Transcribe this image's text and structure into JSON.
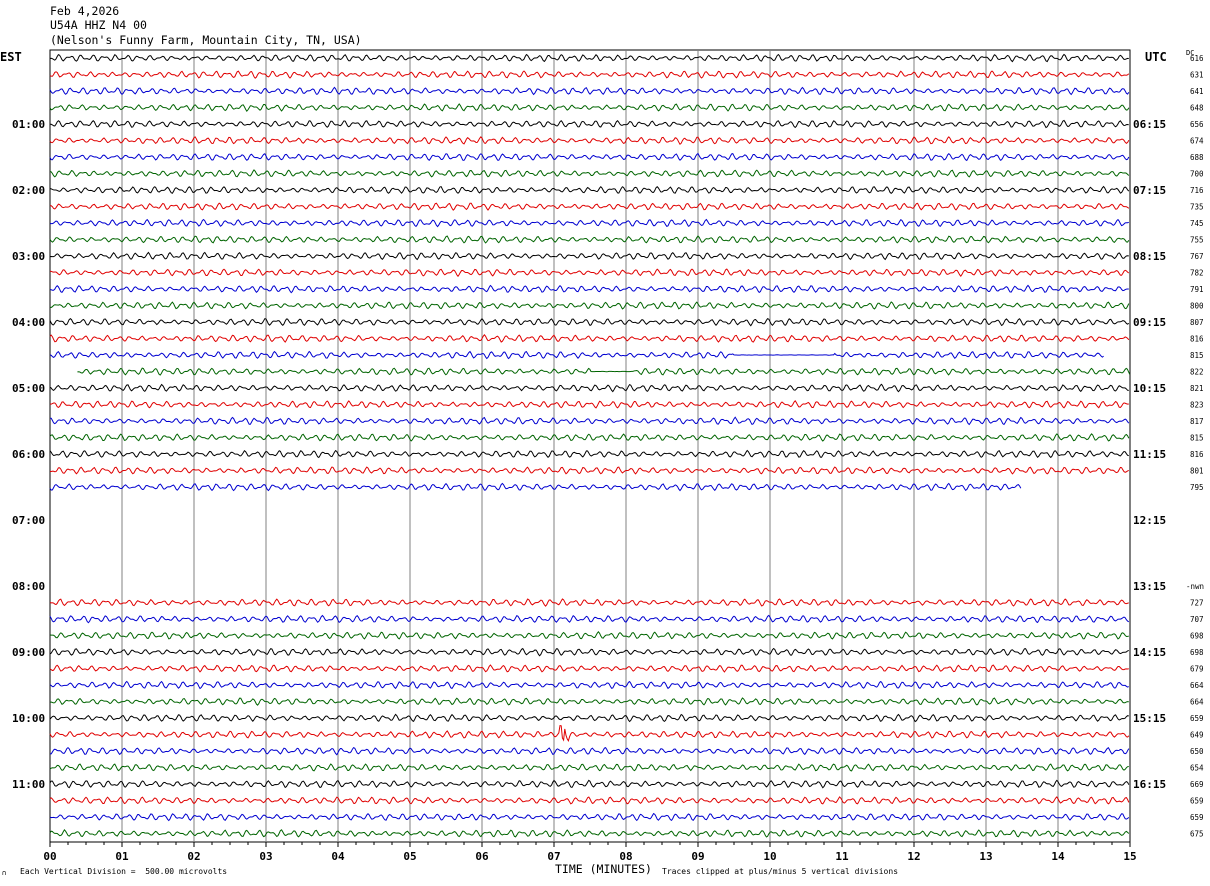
{
  "header": {
    "date": "Feb 4,2026",
    "station": "U54A HHZ N4 00",
    "location": "(Nelson's Funny Farm, Mountain City, TN, USA)"
  },
  "left_tz": "EST",
  "right_tz": "UTC",
  "dc_label": "DC",
  "footer": {
    "vertical_division": "Each Vertical Division =  500.00 microvolts",
    "clip_note": "Traces clipped at plus/minus 5 vertical divisions",
    "x_axis_title": "TIME (MINUTES)",
    "corner_mark": "∩"
  },
  "colors": {
    "black": "#000000",
    "red": "#e00000",
    "blue": "#0000d0",
    "green": "#006400",
    "grid": "#808080"
  },
  "chart_data": {
    "type": "line",
    "title": "U54A HHZ N4 00",
    "xlabel": "TIME (MINUTES)",
    "x_ticks": [
      "00",
      "01",
      "02",
      "03",
      "04",
      "05",
      "06",
      "07",
      "08",
      "09",
      "10",
      "11",
      "12",
      "13",
      "14",
      "15"
    ],
    "xlim": [
      0,
      15
    ],
    "left_hour_labels": [
      "01:00",
      "02:00",
      "03:00",
      "04:00",
      "05:00",
      "06:00",
      "07:00",
      "08:00",
      "09:00",
      "10:00",
      "11:00"
    ],
    "right_hour_labels": [
      "06:15",
      "07:15",
      "08:15",
      "09:15",
      "10:15",
      "11:15",
      "12:15",
      "13:15",
      "14:15",
      "15:15",
      "16:15"
    ],
    "trace_colors": [
      "black",
      "red",
      "blue",
      "green"
    ],
    "traces": [
      {
        "row": 0,
        "dc": "616",
        "start": 0,
        "end": 15
      },
      {
        "row": 1,
        "dc": "631",
        "start": 0,
        "end": 15
      },
      {
        "row": 2,
        "dc": "641",
        "start": 0,
        "end": 15
      },
      {
        "row": 3,
        "dc": "648",
        "start": 0,
        "end": 15
      },
      {
        "row": 4,
        "dc": "656",
        "start": 0,
        "end": 15
      },
      {
        "row": 5,
        "dc": "674",
        "start": 0,
        "end": 15
      },
      {
        "row": 6,
        "dc": "688",
        "start": 0,
        "end": 15
      },
      {
        "row": 7,
        "dc": "700",
        "start": 0,
        "end": 15
      },
      {
        "row": 8,
        "dc": "716",
        "start": 0,
        "end": 15
      },
      {
        "row": 9,
        "dc": "735",
        "start": 0,
        "end": 15
      },
      {
        "row": 10,
        "dc": "745",
        "start": 0,
        "end": 15
      },
      {
        "row": 11,
        "dc": "755",
        "start": 0,
        "end": 15
      },
      {
        "row": 12,
        "dc": "767",
        "start": 0,
        "end": 15
      },
      {
        "row": 13,
        "dc": "782",
        "start": 0,
        "end": 15
      },
      {
        "row": 14,
        "dc": "791",
        "start": 0,
        "end": 15
      },
      {
        "row": 15,
        "dc": "800",
        "start": 0,
        "end": 15
      },
      {
        "row": 16,
        "dc": "807",
        "start": 0,
        "end": 15
      },
      {
        "row": 17,
        "dc": "816",
        "start": 0,
        "end": 15
      },
      {
        "row": 18,
        "dc": "815",
        "start": 0,
        "end": 14.65,
        "flat": [
          9.5,
          10.9
        ]
      },
      {
        "row": 19,
        "dc": "822",
        "start": 0.38,
        "end": 15,
        "flat": [
          7.5,
          8.1
        ]
      },
      {
        "row": 20,
        "dc": "821",
        "start": 0,
        "end": 15
      },
      {
        "row": 21,
        "dc": "823",
        "start": 0,
        "end": 15
      },
      {
        "row": 22,
        "dc": "817",
        "start": 0,
        "end": 15
      },
      {
        "row": 23,
        "dc": "815",
        "start": 0,
        "end": 15
      },
      {
        "row": 24,
        "dc": "816",
        "start": 0,
        "end": 15
      },
      {
        "row": 25,
        "dc": "801",
        "start": 0,
        "end": 15
      },
      {
        "row": 26,
        "dc": "795",
        "start": 0,
        "end": 13.5
      },
      {
        "row": 33,
        "dc": "727",
        "start": 0,
        "end": 15
      },
      {
        "row": 34,
        "dc": "707",
        "start": 0,
        "end": 15
      },
      {
        "row": 35,
        "dc": "698",
        "start": 0,
        "end": 15
      },
      {
        "row": 36,
        "dc": "698",
        "start": 0,
        "end": 15
      },
      {
        "row": 37,
        "dc": "679",
        "start": 0,
        "end": 15
      },
      {
        "row": 38,
        "dc": "664",
        "start": 0,
        "end": 15
      },
      {
        "row": 39,
        "dc": "664",
        "start": 0,
        "end": 15
      },
      {
        "row": 40,
        "dc": "659",
        "start": 0,
        "end": 15
      },
      {
        "row": 41,
        "dc": "649",
        "start": 0,
        "end": 15,
        "spike": 7.15
      },
      {
        "row": 42,
        "dc": "650",
        "start": 0,
        "end": 15
      },
      {
        "row": 43,
        "dc": "654",
        "start": 0,
        "end": 15
      },
      {
        "row": 44,
        "dc": "669",
        "start": 0,
        "end": 15
      },
      {
        "row": 45,
        "dc": "659",
        "start": 0,
        "end": 15
      },
      {
        "row": 46,
        "dc": "659",
        "start": 0,
        "end": 15
      },
      {
        "row": 47,
        "dc": "675",
        "start": 0,
        "end": 15
      }
    ],
    "marker": {
      "row": 32,
      "text": "-nwn"
    }
  }
}
